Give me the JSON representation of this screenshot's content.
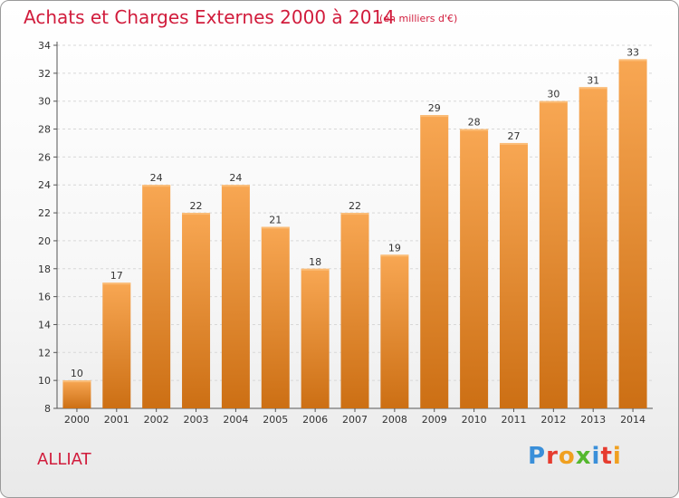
{
  "header": {
    "title": "Achats et Charges Externes 2000 à 2014",
    "subtitle": "(en milliers d'€)"
  },
  "commune": "ALLIAT",
  "logo": {
    "letters": [
      "P",
      "r",
      "o",
      "x",
      "i",
      "t",
      "i"
    ],
    "colors": [
      "#3a8fd9",
      "#e63c2f",
      "#f0a020",
      "#55b82e",
      "#3a8fd9",
      "#e63c2f",
      "#f0a020"
    ]
  },
  "chart_data": {
    "type": "bar",
    "title": "Achats et Charges Externes 2000 à 2014",
    "subtitle": "(en milliers d'€)",
    "categories": [
      "2000",
      "2001",
      "2002",
      "2003",
      "2004",
      "2005",
      "2006",
      "2007",
      "2008",
      "2009",
      "2010",
      "2011",
      "2012",
      "2013",
      "2014"
    ],
    "values": [
      10,
      17,
      24,
      22,
      24,
      21,
      18,
      22,
      19,
      29,
      28,
      27,
      30,
      31,
      33
    ],
    "ylim": [
      8,
      34
    ],
    "yticks": [
      8,
      10,
      12,
      14,
      16,
      18,
      20,
      22,
      24,
      26,
      28,
      30,
      32,
      34
    ],
    "grid": true,
    "bar_color_top": "#f8a753",
    "bar_color_bottom": "#cc6f14"
  }
}
